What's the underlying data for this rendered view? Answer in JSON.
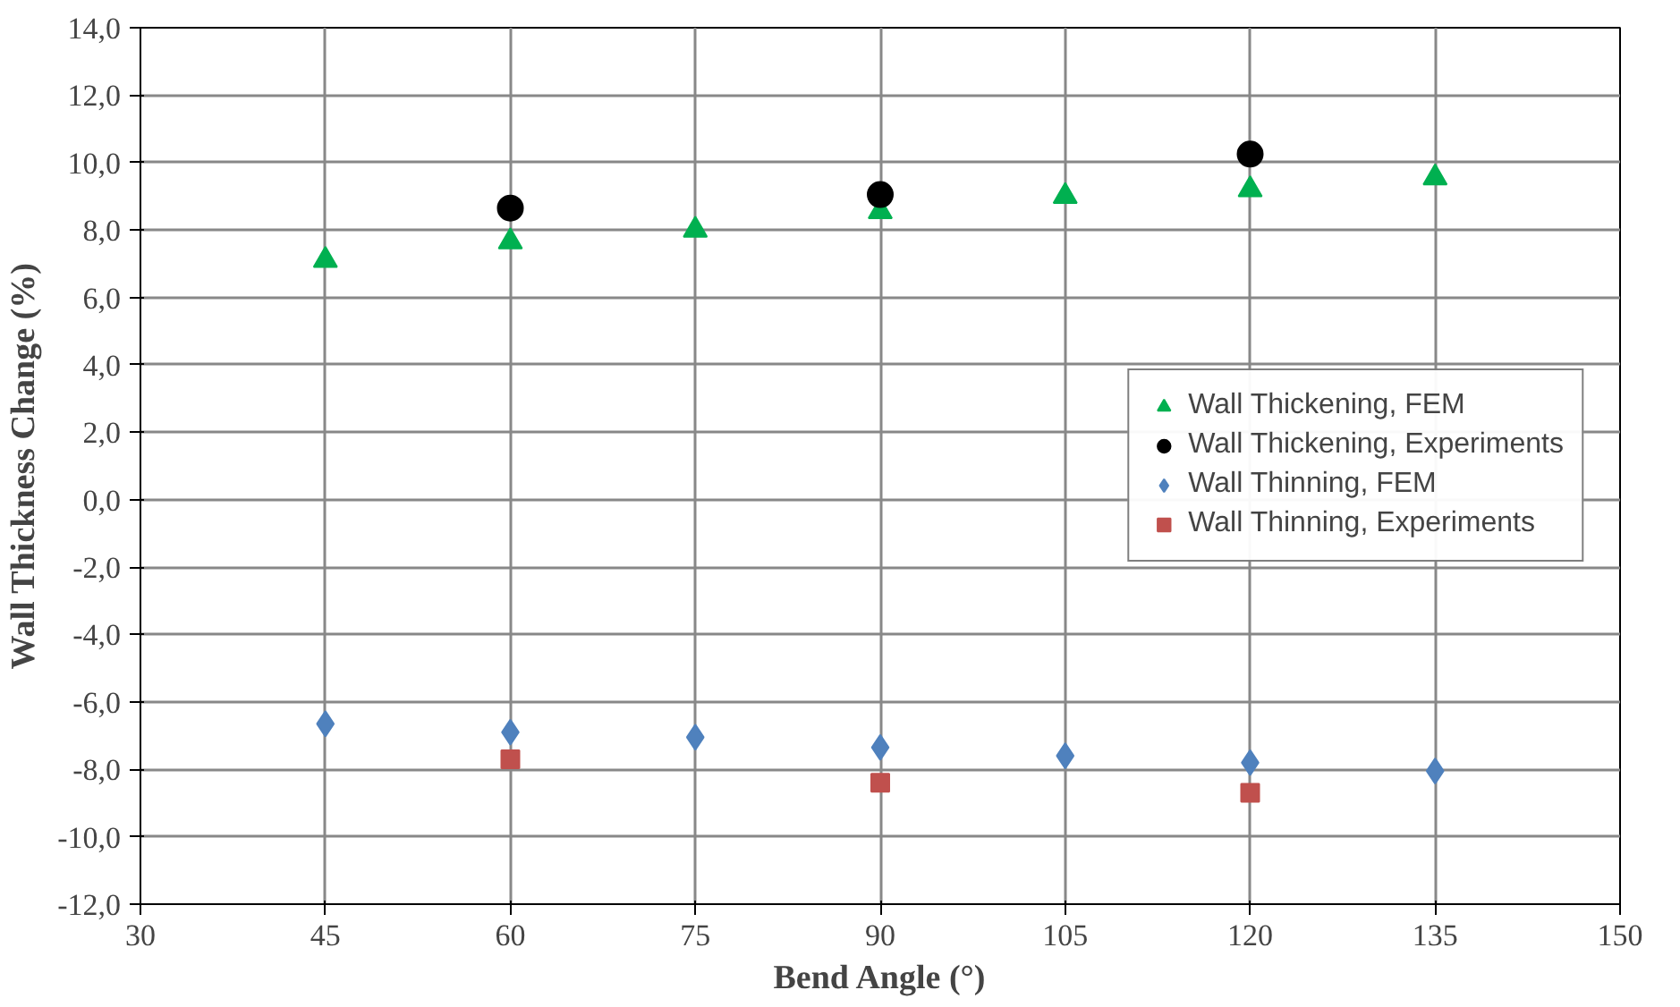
{
  "chart_data": {
    "type": "scatter",
    "xlabel": "Bend Angle (°)",
    "ylabel": "Wall Thickness Change (%)",
    "xlim": [
      30,
      150
    ],
    "xticks": [
      30,
      45,
      60,
      75,
      90,
      105,
      120,
      135,
      150
    ],
    "ylim": [
      -12,
      14
    ],
    "yticks": [
      {
        "value": -12,
        "label": "-12,0"
      },
      {
        "value": -10,
        "label": "-10,0"
      },
      {
        "value": -8,
        "label": "-8,0"
      },
      {
        "value": -6,
        "label": "-6,0"
      },
      {
        "value": -4,
        "label": "-4,0"
      },
      {
        "value": -2,
        "label": "-2,0"
      },
      {
        "value": 0,
        "label": "0,0"
      },
      {
        "value": 2,
        "label": "2,0"
      },
      {
        "value": 4,
        "label": "4,0"
      },
      {
        "value": 6,
        "label": "6,0"
      },
      {
        "value": 8,
        "label": "8,0"
      },
      {
        "value": 10,
        "label": "10,0"
      },
      {
        "value": 12,
        "label": "12,0"
      },
      {
        "value": 14,
        "label": "14,0"
      }
    ],
    "grid": true,
    "legend": "right",
    "series": [
      {
        "name": "Wall Thickening, FEM",
        "color": "#00b050",
        "marker": "triangle",
        "x": [
          45,
          60,
          75,
          90,
          105,
          120,
          135
        ],
        "values": [
          7.1,
          7.65,
          8.0,
          8.55,
          9.0,
          9.2,
          9.55
        ]
      },
      {
        "name": "Wall Thickening, Experiments",
        "color": "#000000",
        "marker": "circle",
        "x": [
          60,
          90,
          120
        ],
        "values": [
          8.65,
          9.05,
          10.25
        ]
      },
      {
        "name": "Wall Thinning, FEM",
        "color": "#4f81bd",
        "marker": "diamond",
        "x": [
          45,
          60,
          75,
          90,
          105,
          120,
          135
        ],
        "values": [
          -6.65,
          -6.9,
          -7.05,
          -7.35,
          -7.6,
          -7.8,
          -8.05
        ]
      },
      {
        "name": "Wall Thinning, Experiments",
        "color": "#c0504d",
        "marker": "square",
        "x": [
          60,
          90,
          120
        ],
        "values": [
          -7.7,
          -8.4,
          -8.7
        ]
      }
    ]
  }
}
